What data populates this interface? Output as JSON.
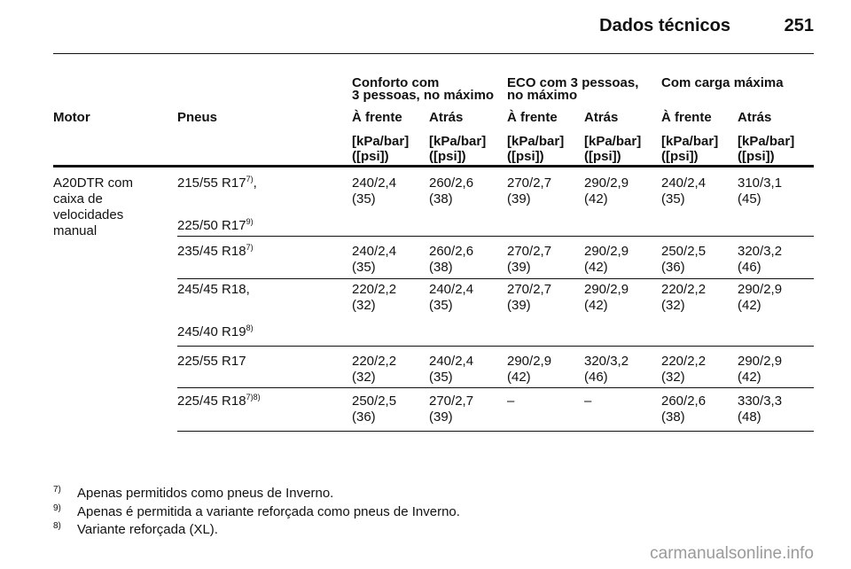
{
  "header": {
    "title": "Dados técnicos",
    "page": "251"
  },
  "table": {
    "groups": [
      [
        "Conforto com",
        "3 pessoas, no máximo"
      ],
      [
        "ECO com 3 pessoas,",
        "no máximo"
      ],
      [
        "Com carga máxima"
      ]
    ],
    "columns": [
      "Motor",
      "Pneus",
      "À frente",
      "Atrás",
      "À frente",
      "Atrás",
      "À frente",
      "Atrás"
    ],
    "units": [
      [
        "[kPa/bar]",
        "([psi])"
      ],
      [
        "[kPa/bar]",
        "([psi])"
      ],
      [
        "[kPa/bar]",
        "([psi])"
      ],
      [
        "[kPa/bar]",
        "([psi])"
      ],
      [
        "[kPa/bar]",
        "([psi])"
      ],
      [
        "[kPa/bar]",
        "([psi])"
      ]
    ],
    "motor": [
      "A20DTR com",
      "caixa de",
      "velocidades",
      "manual"
    ],
    "rows": [
      {
        "tyres": [
          {
            "text": "215/55 R17",
            "sup": "7)",
            "suffix": ","
          },
          {
            "text": "225/50 R17",
            "sup": "9)"
          }
        ],
        "values": [
          [
            "240/2,4",
            "(35)"
          ],
          [
            "260/2,6",
            "(38)"
          ],
          [
            "270/2,7",
            "(39)"
          ],
          [
            "290/2,9",
            "(42)"
          ],
          [
            "240/2,4",
            "(35)"
          ],
          [
            "310/3,1",
            "(45)"
          ]
        ]
      },
      {
        "tyres": [
          {
            "text": "235/45 R18",
            "sup": "7)"
          }
        ],
        "values": [
          [
            "240/2,4",
            "(35)"
          ],
          [
            "260/2,6",
            "(38)"
          ],
          [
            "270/2,7",
            "(39)"
          ],
          [
            "290/2,9",
            "(42)"
          ],
          [
            "250/2,5",
            "(36)"
          ],
          [
            "320/3,2",
            "(46)"
          ]
        ]
      },
      {
        "tyres": [
          {
            "text": "245/45 R18,"
          },
          {
            "text": "245/40 R19",
            "sup": "8)"
          }
        ],
        "values": [
          [
            "220/2,2",
            "(32)"
          ],
          [
            "240/2,4",
            "(35)"
          ],
          [
            "270/2,7",
            "(39)"
          ],
          [
            "290/2,9",
            "(42)"
          ],
          [
            "220/2,2",
            "(32)"
          ],
          [
            "290/2,9",
            "(42)"
          ]
        ]
      },
      {
        "tyres": [
          {
            "text": "225/55 R17"
          }
        ],
        "values": [
          [
            "220/2,2",
            "(32)"
          ],
          [
            "240/2,4",
            "(35)"
          ],
          [
            "290/2,9",
            "(42)"
          ],
          [
            "320/3,2",
            "(46)"
          ],
          [
            "220/2,2",
            "(32)"
          ],
          [
            "290/2,9",
            "(42)"
          ]
        ]
      },
      {
        "tyres": [
          {
            "text": "225/45 R18",
            "sup": "7)8)"
          }
        ],
        "values": [
          [
            "250/2,5",
            "(36)"
          ],
          [
            "270/2,7",
            "(39)"
          ],
          [
            "–"
          ],
          [
            "–"
          ],
          [
            "260/2,6",
            "(38)"
          ],
          [
            "330/3,3",
            "(48)"
          ]
        ]
      }
    ]
  },
  "footnotes": [
    {
      "mark": "7)",
      "text": "Apenas permitidos como pneus de Inverno."
    },
    {
      "mark": "9)",
      "text": "Apenas é permitida a variante reforçada como pneus de Inverno."
    },
    {
      "mark": "8)",
      "text": "Variante reforçada (XL)."
    }
  ],
  "watermark": "carmanualsonline.info"
}
